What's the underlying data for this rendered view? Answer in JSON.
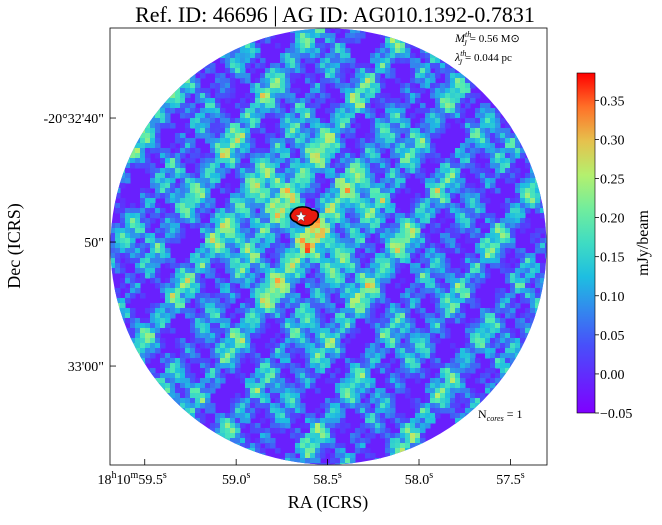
{
  "chart_data": {
    "type": "image",
    "title": "Ref. ID: 46696 | AG ID: AG010.1392-0.7831",
    "x_label": "RA (ICRS)",
    "y_label": "Dec (ICRS)",
    "colorbar_label": "mJy/beam",
    "xlim": [
      59.69,
      57.3
    ],
    "xticks": [
      {
        "value": 59.5,
        "label": "18h10m59.5s"
      },
      {
        "value": 59.0,
        "label": "59.0s"
      },
      {
        "value": 58.5,
        "label": "58.5s"
      },
      {
        "value": 58.0,
        "label": "58.0s"
      },
      {
        "value": 57.5,
        "label": "57.5s"
      }
    ],
    "ylim": [
      67.98,
      32.74
    ],
    "yticks": [
      {
        "value": 40,
        "label": "-20°32'40\""
      },
      {
        "value": 50,
        "label": "50\""
      },
      {
        "value": 60,
        "label": "33'00\""
      }
    ],
    "clim": [
      -0.05,
      0.385
    ],
    "cticks": [
      {
        "value": -0.05,
        "label": "−0.05"
      },
      {
        "value": 0,
        "label": "0.00"
      },
      0.05,
      {
        "value": 0.1,
        "label": "0.10"
      },
      0.15,
      {
        "value": 0.2,
        "label": "0.20"
      },
      0.25,
      {
        "value": 0.3,
        "label": "0.30"
      },
      0.35
    ],
    "annotations": {
      "mass": {
        "symbol": "M",
        "sub": "J",
        "sup": "th",
        "text": "= 0.56 M⊙"
      },
      "length": {
        "symbol": "λ",
        "sub": "J",
        "sup": "th",
        "text": "= 0.044 pc"
      },
      "cores": {
        "symbol": "N",
        "sub": "cores",
        "text": " = 1"
      }
    }
  }
}
